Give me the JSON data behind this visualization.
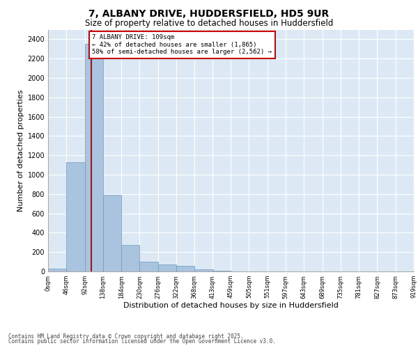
{
  "title_line1": "7, ALBANY DRIVE, HUDDERSFIELD, HD5 9UR",
  "title_line2": "Size of property relative to detached houses in Huddersfield",
  "xlabel": "Distribution of detached houses by size in Huddersfield",
  "ylabel": "Number of detached properties",
  "background_color": "#dce9f5",
  "bar_color": "#aac4e0",
  "bar_edge_color": "#6a9abb",
  "grid_color": "#ffffff",
  "annotation_box_color": "#cc0000",
  "property_line_color": "#cc0000",
  "property_value": 109,
  "annotation_text_line1": "7 ALBANY DRIVE: 109sqm",
  "annotation_text_line2": "← 42% of detached houses are smaller (1,865)",
  "annotation_text_line3": "58% of semi-detached houses are larger (2,562) →",
  "footer_line1": "Contains HM Land Registry data © Crown copyright and database right 2025.",
  "footer_line2": "Contains public sector information licensed under the Open Government Licence v3.0.",
  "bin_edges": [
    0,
    46,
    92,
    138,
    184,
    230,
    276,
    322,
    368,
    413,
    459,
    505,
    551,
    597,
    643,
    689,
    735,
    781,
    827,
    873,
    919
  ],
  "bin_labels": [
    "0sqm",
    "46sqm",
    "92sqm",
    "138sqm",
    "184sqm",
    "230sqm",
    "276sqm",
    "322sqm",
    "368sqm",
    "413sqm",
    "459sqm",
    "505sqm",
    "551sqm",
    "597sqm",
    "643sqm",
    "689sqm",
    "735sqm",
    "781sqm",
    "827sqm",
    "873sqm",
    "919sqm"
  ],
  "bar_heights": [
    30,
    1130,
    2350,
    790,
    270,
    100,
    70,
    55,
    25,
    10,
    0,
    0,
    0,
    0,
    0,
    0,
    0,
    0,
    0,
    0
  ],
  "ylim": [
    0,
    2500
  ],
  "yticks": [
    0,
    200,
    400,
    600,
    800,
    1000,
    1200,
    1400,
    1600,
    1800,
    2000,
    2200,
    2400
  ]
}
